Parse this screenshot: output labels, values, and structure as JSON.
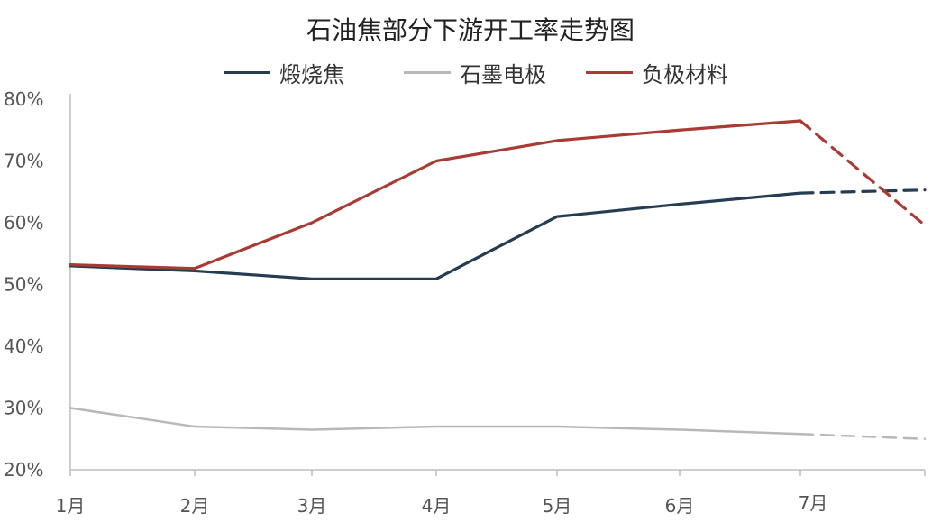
{
  "chart_data": {
    "type": "line",
    "title": "石油焦部分下游开工率走势图",
    "categories": [
      "1月",
      "2月",
      "3月",
      "4月",
      "5月",
      "6月",
      "7月"
    ],
    "ylim": [
      20,
      80
    ],
    "y_ticks": [
      "20%",
      "30%",
      "40%",
      "50%",
      "60%",
      "70%",
      "80%"
    ],
    "legend_position": "top",
    "grid": false,
    "series": [
      {
        "name": "煅烧焦",
        "color": "#263c52",
        "values": [
          53.0,
          52.2,
          50.9,
          50.9,
          61.0,
          63.0,
          64.8
        ],
        "projection": 65.3
      },
      {
        "name": "石墨电极",
        "color": "#b8b8b8",
        "values": [
          30.0,
          27.0,
          26.5,
          27.0,
          27.0,
          26.5,
          25.8
        ],
        "projection": 25.0
      },
      {
        "name": "负极材料",
        "color": "#a83b33",
        "values": [
          53.2,
          52.6,
          60.0,
          70.0,
          73.3,
          75.0,
          76.5
        ],
        "projection": 59.6
      }
    ]
  }
}
